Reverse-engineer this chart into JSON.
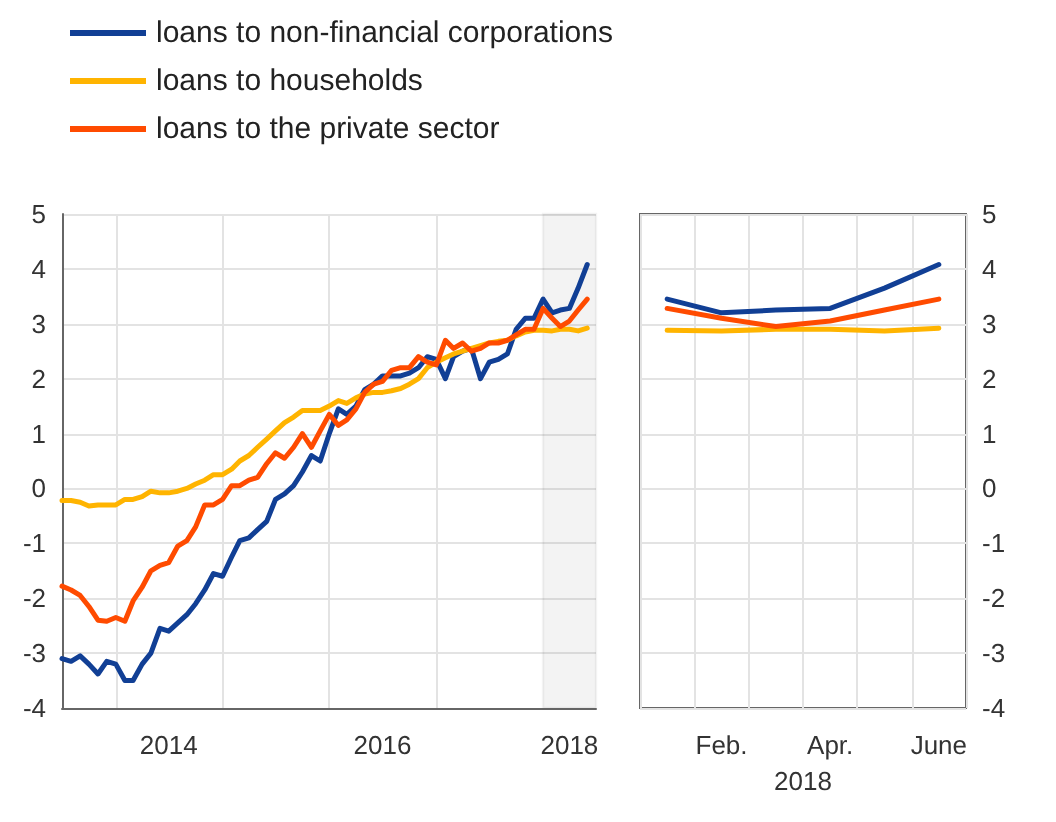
{
  "chart_data": [
    {
      "type": "line",
      "x": [
        "2013-07",
        "2013-08",
        "2013-09",
        "2013-10",
        "2013-11",
        "2013-12",
        "2014-01",
        "2014-02",
        "2014-03",
        "2014-04",
        "2014-05",
        "2014-06",
        "2014-07",
        "2014-08",
        "2014-09",
        "2014-10",
        "2014-11",
        "2014-12",
        "2015-01",
        "2015-02",
        "2015-03",
        "2015-04",
        "2015-05",
        "2015-06",
        "2015-07",
        "2015-08",
        "2015-09",
        "2015-10",
        "2015-11",
        "2015-12",
        "2016-01",
        "2016-02",
        "2016-03",
        "2016-04",
        "2016-05",
        "2016-06",
        "2016-07",
        "2016-08",
        "2016-09",
        "2016-10",
        "2016-11",
        "2016-12",
        "2017-01",
        "2017-02",
        "2017-03",
        "2017-04",
        "2017-05",
        "2017-06",
        "2017-07",
        "2017-08",
        "2017-09",
        "2017-10",
        "2017-11",
        "2017-12",
        "2018-01",
        "2018-02",
        "2018-03",
        "2018-04",
        "2018-05",
        "2018-06"
      ],
      "series": [
        {
          "name": "loans to non-financial corporations",
          "color": "#113f95",
          "values": [
            -3.1,
            -3.15,
            -3.05,
            -3.2,
            -3.38,
            -3.15,
            -3.2,
            -3.5,
            -3.5,
            -3.2,
            -3.0,
            -2.55,
            -2.6,
            -2.45,
            -2.3,
            -2.1,
            -1.85,
            -1.55,
            -1.6,
            -1.25,
            -0.95,
            -0.9,
            -0.75,
            -0.6,
            -0.2,
            -0.1,
            0.05,
            0.3,
            0.6,
            0.5,
            1.0,
            1.45,
            1.35,
            1.5,
            1.8,
            1.9,
            2.05,
            2.05,
            2.05,
            2.1,
            2.2,
            2.4,
            2.35,
            2.0,
            2.4,
            2.5,
            2.55,
            2.0,
            2.3,
            2.35,
            2.45,
            2.9,
            3.1,
            3.1,
            3.45,
            3.2,
            3.25,
            3.28,
            3.65,
            4.08
          ]
        },
        {
          "name": "loans to households",
          "color": "#ffb400",
          "values": [
            -0.22,
            -0.22,
            -0.25,
            -0.32,
            -0.3,
            -0.3,
            -0.3,
            -0.2,
            -0.2,
            -0.15,
            -0.05,
            -0.08,
            -0.08,
            -0.05,
            0.0,
            0.08,
            0.15,
            0.25,
            0.25,
            0.35,
            0.5,
            0.6,
            0.75,
            0.9,
            1.05,
            1.2,
            1.3,
            1.42,
            1.42,
            1.42,
            1.5,
            1.6,
            1.55,
            1.65,
            1.72,
            1.75,
            1.75,
            1.78,
            1.82,
            1.9,
            2.0,
            2.2,
            2.3,
            2.38,
            2.45,
            2.5,
            2.55,
            2.6,
            2.65,
            2.68,
            2.7,
            2.78,
            2.85,
            2.88,
            2.88,
            2.87,
            2.9,
            2.9,
            2.87,
            2.92
          ]
        },
        {
          "name": "loans to the private sector",
          "color": "#ff4b00",
          "values": [
            -1.78,
            -1.85,
            -1.95,
            -2.15,
            -2.4,
            -2.42,
            -2.35,
            -2.42,
            -2.05,
            -1.8,
            -1.5,
            -1.4,
            -1.35,
            -1.05,
            -0.95,
            -0.7,
            -0.3,
            -0.3,
            -0.2,
            0.05,
            0.05,
            0.15,
            0.2,
            0.45,
            0.65,
            0.55,
            0.75,
            1.0,
            0.75,
            1.05,
            1.35,
            1.15,
            1.25,
            1.45,
            1.75,
            1.9,
            1.95,
            2.15,
            2.2,
            2.2,
            2.4,
            2.3,
            2.25,
            2.7,
            2.55,
            2.65,
            2.5,
            2.55,
            2.65,
            2.65,
            2.7,
            2.8,
            2.9,
            2.9,
            3.28,
            3.1,
            2.95,
            3.05,
            3.25,
            3.45
          ]
        }
      ],
      "xlim": [
        "2013-07",
        "2018-07"
      ],
      "xticks": [
        {
          "value": "2014-01",
          "label": null
        },
        {
          "value": "2014-07",
          "label": "2014"
        },
        {
          "value": "2015-01",
          "label": null
        },
        {
          "value": "2016-01",
          "label": null
        },
        {
          "value": "2016-07",
          "label": "2016"
        },
        {
          "value": "2017-01",
          "label": null
        },
        {
          "value": "2018-04",
          "label": "2018"
        }
      ],
      "ylim": [
        -4,
        5
      ],
      "yticks": [
        -4,
        -3,
        -2,
        -1,
        0,
        1,
        2,
        3,
        4,
        5
      ],
      "bands": [
        {
          "axis": "x",
          "from": "2018-01",
          "to": "2018-07",
          "color": "#555555"
        }
      ],
      "grid": true,
      "legend": "top left",
      "marker": "none",
      "line_style": "solid"
    },
    {
      "type": "line",
      "categories": [
        null,
        "Feb.",
        null,
        "Apr.",
        null,
        "June"
      ],
      "xlabel": "2018",
      "series": [
        {
          "color": "#113f95",
          "values": [
            3.45,
            3.2,
            3.25,
            3.28,
            3.65,
            4.08
          ]
        },
        {
          "color": "#ffb400",
          "values": [
            2.88,
            2.87,
            2.9,
            2.9,
            2.87,
            2.92
          ]
        },
        {
          "color": "#ff4b00",
          "values": [
            3.28,
            3.1,
            2.95,
            3.05,
            3.25,
            3.45
          ]
        }
      ],
      "ylim": [
        -4,
        5
      ],
      "yticks": [
        -4,
        -3,
        -2,
        -1,
        0,
        1,
        2,
        3,
        4,
        5
      ],
      "grid": true,
      "legend": false,
      "marker": "none",
      "line_style": "solid"
    }
  ]
}
